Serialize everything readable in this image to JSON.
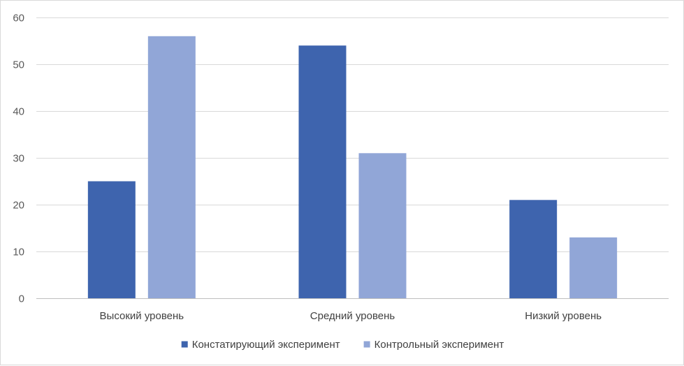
{
  "chart_data": {
    "type": "bar",
    "title": "",
    "xlabel": "",
    "ylabel": "",
    "categories": [
      "Высокий уровень",
      "Средний уровень",
      "Низкий уровень"
    ],
    "series": [
      {
        "name": "Констатирующий эксперимент",
        "values": [
          25,
          54,
          21
        ],
        "color": "#3e64ae"
      },
      {
        "name": "Контрольный эксперимент",
        "values": [
          56,
          31,
          13
        ],
        "color": "#91a6d7"
      }
    ],
    "ylim": [
      0,
      60
    ],
    "yticks": [
      0,
      10,
      20,
      30,
      40,
      50,
      60
    ],
    "grid": true,
    "legend_position": "bottom",
    "colors": {
      "grid": "#d9d9d9",
      "axis": "#bfbfbf",
      "text": "#595959"
    }
  }
}
